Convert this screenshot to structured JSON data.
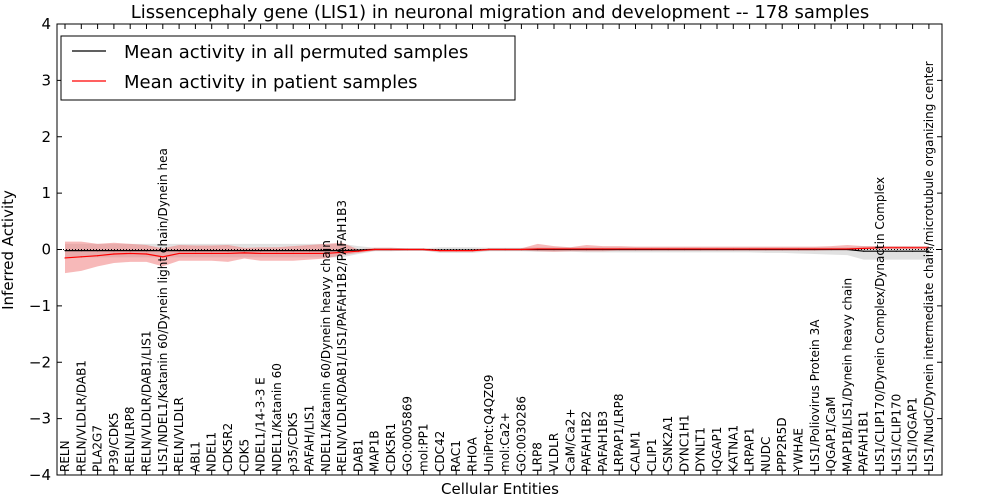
{
  "chart_data": {
    "type": "line",
    "title": "Lissencephaly gene (LIS1) in neuronal migration and development -- 178 samples",
    "xlabel": "Cellular Entities",
    "ylabel": "Inferred Activity",
    "ylim": [
      -4,
      4
    ],
    "yticks": [
      -4,
      -3,
      -2,
      -1,
      0,
      1,
      2,
      3,
      4
    ],
    "ytick_labels": [
      "−4",
      "−3",
      "−2",
      "−1",
      "0",
      "1",
      "2",
      "3",
      "4"
    ],
    "grid": false,
    "legend_position": "top-left",
    "categories": [
      "RELN",
      "RELN/VLDLR/DAB1",
      "PLA2G7",
      "P39/CDK5",
      "RELN/LRP8",
      "RELN/VLDLR/DAB1/LIS1",
      "LIS1/NDEL1/Katanin 60/Dynein light chain/Dynein hea",
      "RELN/VLDLR",
      "ABL1",
      "NDEL1",
      "CDK5R2",
      "CDK5",
      "NDEL1/14-3-3 E",
      "NDEL1/Katanin 60",
      "p35/CDK5",
      "PAFAH/LIS1",
      "NDEL1/Katanin 60/Dynein heavy chain",
      "RELN/VLDLR/DAB1/LIS1/PAFAH1B2/PAFAH1B3",
      "DAB1",
      "MAP1B",
      "CDK5R1",
      "GO:0005869",
      "mol:PP1",
      "CDC42",
      "RAC1",
      "RHOA",
      "UniProt:Q4QZ09",
      "mol:Ca2+",
      "GO:0030286",
      "LRP8",
      "VLDLR",
      "CaM/Ca2+",
      "PAFAH1B2",
      "PAFAH1B3",
      "LRPAP1/LRP8",
      "CALM1",
      "CLIP1",
      "CSNK2A1",
      "DYNC1H1",
      "DYNLT1",
      "IQGAP1",
      "KATNA1",
      "LRPAP1",
      "NUDC",
      "PPP2R5D",
      "YWHAE",
      "LIS1/Poliovirus Protein 3A",
      "IQGAP1/CaM",
      "MAP1B/LIS1/Dynein heavy chain",
      "PAFAH1B1",
      "LIS1/CLIP170/Dynein Complex/Dynactin Complex",
      "LIS1/CLIP170",
      "LIS1/IQGAP1",
      "LIS1/NudC/Dynein intermediate chain/microtubule organizing center"
    ],
    "series": [
      {
        "name": "Mean activity in all permuted samples",
        "color": "#000000",
        "band_color": "#aaaaaa",
        "values": [
          -0.02,
          -0.02,
          -0.02,
          -0.02,
          -0.02,
          -0.02,
          -0.02,
          -0.02,
          -0.02,
          -0.02,
          -0.02,
          -0.02,
          -0.02,
          -0.02,
          -0.02,
          -0.02,
          -0.02,
          -0.02,
          -0.01,
          0.0,
          0.0,
          0.0,
          0.0,
          -0.01,
          -0.01,
          -0.01,
          0.0,
          0.0,
          0.0,
          0.0,
          0.0,
          0.0,
          0.0,
          0.0,
          0.0,
          0.0,
          0.0,
          0.0,
          0.0,
          0.0,
          0.0,
          0.0,
          0.0,
          0.0,
          0.0,
          0.0,
          0.0,
          0.0,
          0.0,
          -0.03,
          -0.03,
          -0.03,
          -0.03,
          -0.03
        ],
        "lower": [
          -0.14,
          -0.14,
          -0.14,
          -0.14,
          -0.14,
          -0.14,
          -0.14,
          -0.14,
          -0.14,
          -0.14,
          -0.14,
          -0.14,
          -0.14,
          -0.14,
          -0.14,
          -0.14,
          -0.14,
          -0.14,
          -0.08,
          -0.03,
          -0.03,
          -0.02,
          -0.02,
          -0.06,
          -0.06,
          -0.06,
          -0.03,
          -0.03,
          -0.03,
          -0.04,
          -0.04,
          -0.04,
          -0.05,
          -0.05,
          -0.05,
          -0.05,
          -0.05,
          -0.05,
          -0.05,
          -0.05,
          -0.05,
          -0.05,
          -0.05,
          -0.06,
          -0.06,
          -0.07,
          -0.08,
          -0.09,
          -0.1,
          -0.18,
          -0.18,
          -0.18,
          -0.18,
          -0.18
        ],
        "upper": [
          0.1,
          0.1,
          0.1,
          0.1,
          0.1,
          0.1,
          0.1,
          0.1,
          0.1,
          0.1,
          0.1,
          0.1,
          0.1,
          0.1,
          0.1,
          0.1,
          0.1,
          0.1,
          0.06,
          0.03,
          0.03,
          0.02,
          0.02,
          0.04,
          0.04,
          0.04,
          0.03,
          0.03,
          0.03,
          0.04,
          0.04,
          0.04,
          0.04,
          0.04,
          0.04,
          0.04,
          0.04,
          0.04,
          0.04,
          0.04,
          0.04,
          0.04,
          0.04,
          0.04,
          0.04,
          0.04,
          0.04,
          0.04,
          0.04,
          0.06,
          0.06,
          0.06,
          0.06,
          0.06
        ]
      },
      {
        "name": "Mean activity in patient samples",
        "color": "#ff0000",
        "band_color": "#f08080",
        "values": [
          -0.15,
          -0.13,
          -0.11,
          -0.08,
          -0.07,
          -0.08,
          -0.13,
          -0.07,
          -0.07,
          -0.07,
          -0.07,
          -0.06,
          -0.07,
          -0.07,
          -0.07,
          -0.07,
          -0.07,
          -0.05,
          -0.03,
          0.0,
          0.0,
          0.0,
          0.0,
          -0.02,
          -0.02,
          -0.02,
          0.0,
          0.0,
          0.0,
          0.01,
          0.01,
          0.01,
          0.01,
          0.01,
          0.01,
          0.01,
          0.01,
          0.01,
          0.01,
          0.01,
          0.01,
          0.01,
          0.01,
          0.01,
          0.01,
          0.01,
          0.01,
          0.01,
          0.01,
          0.02,
          0.03,
          0.03,
          0.03,
          0.03
        ],
        "lower": [
          -0.42,
          -0.38,
          -0.3,
          -0.24,
          -0.22,
          -0.22,
          -0.3,
          -0.2,
          -0.2,
          -0.2,
          -0.22,
          -0.16,
          -0.2,
          -0.2,
          -0.2,
          -0.18,
          -0.16,
          -0.1,
          -0.06,
          -0.02,
          -0.02,
          -0.02,
          -0.02,
          -0.04,
          -0.04,
          -0.04,
          -0.02,
          -0.02,
          -0.02,
          -0.03,
          -0.04,
          -0.03,
          -0.03,
          -0.03,
          -0.02,
          -0.02,
          -0.02,
          -0.02,
          -0.02,
          -0.02,
          -0.02,
          -0.02,
          -0.02,
          -0.02,
          -0.02,
          -0.02,
          -0.02,
          -0.01,
          -0.01,
          0.0,
          0.02,
          0.02,
          0.02,
          0.02
        ],
        "upper": [
          0.14,
          0.14,
          0.1,
          0.12,
          0.1,
          0.08,
          0.02,
          0.08,
          0.07,
          0.07,
          0.08,
          0.03,
          0.04,
          0.04,
          0.06,
          0.08,
          0.1,
          0.12,
          0.0,
          0.03,
          0.03,
          0.02,
          0.02,
          0.0,
          0.0,
          0.0,
          0.02,
          0.02,
          0.02,
          0.1,
          0.06,
          0.04,
          0.08,
          0.06,
          0.06,
          0.05,
          0.05,
          0.05,
          0.05,
          0.05,
          0.05,
          0.05,
          0.05,
          0.05,
          0.05,
          0.05,
          0.05,
          0.06,
          0.08,
          0.06,
          0.06,
          0.06,
          0.06,
          0.06
        ]
      }
    ]
  }
}
